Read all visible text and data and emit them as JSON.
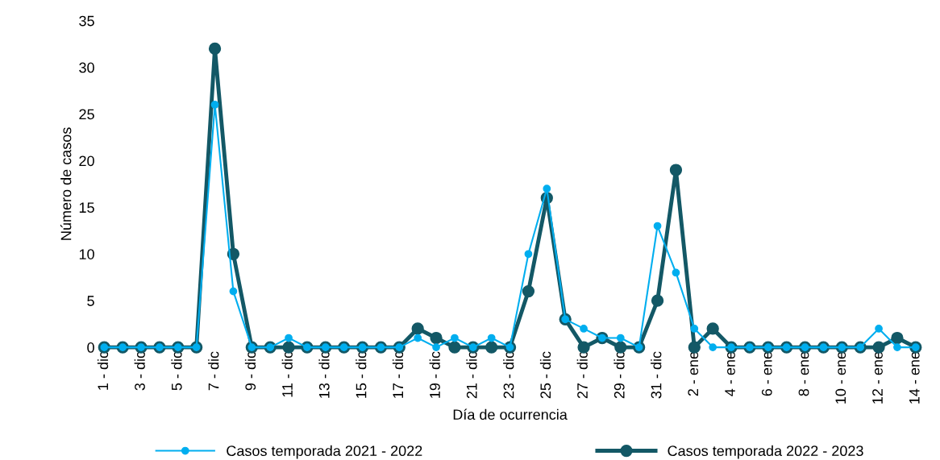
{
  "chart_data": {
    "type": "line",
    "xlabel": "Día de ocurrencia",
    "ylabel": "Número de casos",
    "categories": [
      "1 - dic",
      null,
      "3 - dic",
      null,
      "5 - dic",
      null,
      "7 - dic",
      null,
      "9 - dic",
      null,
      "11 - dic",
      null,
      "13 - dic",
      null,
      "15 - dic",
      null,
      "17 - dic",
      null,
      "19 - dic",
      null,
      "21 - dic",
      null,
      "23 - dic",
      null,
      "25 - dic",
      null,
      "27 - dic",
      null,
      "29 - dic",
      null,
      "31 - dic",
      null,
      "2 - ene",
      null,
      "4 - ene",
      null,
      "6 - ene",
      null,
      "8 - ene",
      null,
      "10 - ene",
      null,
      "12 - ene",
      null,
      "14 - ene"
    ],
    "series": [
      {
        "name": "Casos temporada 2021 - 2022",
        "color": "#00aeef",
        "values": [
          0,
          0,
          0,
          0,
          0,
          0,
          26,
          6,
          0,
          0,
          1,
          0,
          0,
          0,
          0,
          0,
          0,
          1,
          0,
          1,
          0,
          1,
          0,
          10,
          17,
          3,
          2,
          1,
          1,
          0,
          13,
          8,
          2,
          0,
          0,
          0,
          0,
          0,
          0,
          0,
          0,
          0,
          2,
          0,
          0
        ]
      },
      {
        "name": "Casos temporada 2022 - 2023",
        "color": "#135866",
        "values": [
          0,
          0,
          0,
          0,
          0,
          0,
          32,
          10,
          0,
          0,
          0,
          0,
          0,
          0,
          0,
          0,
          0,
          2,
          1,
          0,
          0,
          0,
          0,
          6,
          16,
          3,
          0,
          1,
          0,
          0,
          5,
          19,
          0,
          2,
          0,
          0,
          0,
          0,
          0,
          0,
          0,
          0,
          0,
          1,
          0
        ]
      }
    ],
    "ylim": [
      0,
      35
    ],
    "yticks": [
      0,
      5,
      10,
      15,
      20,
      25,
      30,
      35
    ],
    "grid": false,
    "legend": "bottom",
    "marker": "circle",
    "line_style": "solid"
  }
}
